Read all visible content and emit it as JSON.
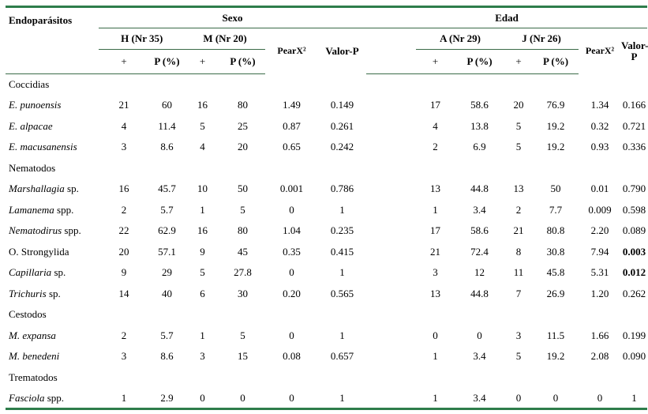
{
  "header": {
    "endoparasitos": "Endoparásitos",
    "sexo": "Sexo",
    "edad": "Edad",
    "h_group": "H (Nr 35)",
    "m_group": "M (Nr 20)",
    "a_group": "A (Nr 29)",
    "j_group": "J (Nr 26)",
    "plus": "+",
    "p_pct": "P (%)",
    "pearx": "PearX²",
    "valorp": "Valor-P",
    "valorp_wrap": "Valor-P"
  },
  "categories": {
    "coccidias": "Coccidias",
    "nematodos": "Nematodos",
    "cestodos": "Cestodos",
    "trematodos": "Trematodos"
  },
  "rows": {
    "e_punoensis": {
      "name_i": "E. punoensis",
      "name_r": "",
      "h_n": "21",
      "h_p": "60",
      "m_n": "16",
      "m_p": "80",
      "s_x2": "1.49",
      "s_p": "0.149",
      "a_n": "17",
      "a_p": "58.6",
      "j_n": "20",
      "j_p": "76.9",
      "e_x2": "1.34",
      "e_p": "0.166"
    },
    "e_alpacae": {
      "name_i": "E. alpacae",
      "name_r": "",
      "h_n": "4",
      "h_p": "11.4",
      "m_n": "5",
      "m_p": "25",
      "s_x2": "0.87",
      "s_p": "0.261",
      "a_n": "4",
      "a_p": "13.8",
      "j_n": "5",
      "j_p": "19.2",
      "e_x2": "0.32",
      "e_p": "0.721"
    },
    "e_macusanensis": {
      "name_i": "E. macusanensis",
      "name_r": "",
      "h_n": "3",
      "h_p": "8.6",
      "m_n": "4",
      "m_p": "20",
      "s_x2": "0.65",
      "s_p": "0.242",
      "a_n": "2",
      "a_p": "6.9",
      "j_n": "5",
      "j_p": "19.2",
      "e_x2": "0.93",
      "e_p": "0.336"
    },
    "marshallagia": {
      "name_i": "Marshallagia",
      "name_r": " sp.",
      "h_n": "16",
      "h_p": "45.7",
      "m_n": "10",
      "m_p": "50",
      "s_x2": "0.001",
      "s_p": "0.786",
      "a_n": "13",
      "a_p": "44.8",
      "j_n": "13",
      "j_p": "50",
      "e_x2": "0.01",
      "e_p": "0.790"
    },
    "lamanema": {
      "name_i": "Lamanema",
      "name_r": " spp.",
      "h_n": "2",
      "h_p": "5.7",
      "m_n": "1",
      "m_p": "5",
      "s_x2": "0",
      "s_p": "1",
      "a_n": "1",
      "a_p": "3.4",
      "j_n": "2",
      "j_p": "7.7",
      "e_x2": "0.009",
      "e_p": "0.598"
    },
    "nematodirus": {
      "name_i": "Nematodirus",
      "name_r": " spp.",
      "h_n": "22",
      "h_p": "62.9",
      "m_n": "16",
      "m_p": "80",
      "s_x2": "1.04",
      "s_p": "0.235",
      "a_n": "17",
      "a_p": "58.6",
      "j_n": "21",
      "j_p": "80.8",
      "e_x2": "2.20",
      "e_p": "0.089"
    },
    "strongylida": {
      "name_i": "",
      "name_r": "O. Strongylida",
      "h_n": "20",
      "h_p": "57.1",
      "m_n": "9",
      "m_p": "45",
      "s_x2": "0.35",
      "s_p": "0.415",
      "a_n": "21",
      "a_p": "72.4",
      "j_n": "8",
      "j_p": "30.8",
      "e_x2": "7.94",
      "e_p": "0.003"
    },
    "capillaria": {
      "name_i": "Capillaria",
      "name_r": " sp.",
      "h_n": "9",
      "h_p": "29",
      "m_n": "5",
      "m_p": "27.8",
      "s_x2": "0",
      "s_p": "1",
      "a_n": "3",
      "a_p": "12",
      "j_n": "11",
      "j_p": "45.8",
      "e_x2": "5.31",
      "e_p": "0.012"
    },
    "trichuris": {
      "name_i": "Trichuris",
      "name_r": " sp.",
      "h_n": "14",
      "h_p": "40",
      "m_n": "6",
      "m_p": "30",
      "s_x2": "0.20",
      "s_p": "0.565",
      "a_n": "13",
      "a_p": "44.8",
      "j_n": "7",
      "j_p": "26.9",
      "e_x2": "1.20",
      "e_p": "0.262"
    },
    "m_expansa": {
      "name_i": "M. expansa",
      "name_r": "",
      "h_n": "2",
      "h_p": "5.7",
      "m_n": "1",
      "m_p": "5",
      "s_x2": "0",
      "s_p": "1",
      "a_n": "0",
      "a_p": "0",
      "j_n": "3",
      "j_p": "11.5",
      "e_x2": "1.66",
      "e_p": "0.199"
    },
    "m_benedeni": {
      "name_i": "M. benedeni",
      "name_r": "",
      "h_n": "3",
      "h_p": "8.6",
      "m_n": "3",
      "m_p": "15",
      "s_x2": "0.08",
      "s_p": "0.657",
      "a_n": "1",
      "a_p": "3.4",
      "j_n": "5",
      "j_p": "19.2",
      "e_x2": "2.08",
      "e_p": "0.090"
    },
    "fasciola": {
      "name_i": "Fasciola",
      "name_r": " spp.",
      "h_n": "1",
      "h_p": "2.9",
      "m_n": "0",
      "m_p": "0",
      "s_x2": "0",
      "s_p": "1",
      "a_n": "1",
      "a_p": "3.4",
      "j_n": "0",
      "j_p": "0",
      "e_x2": "0",
      "e_p": "1"
    }
  }
}
